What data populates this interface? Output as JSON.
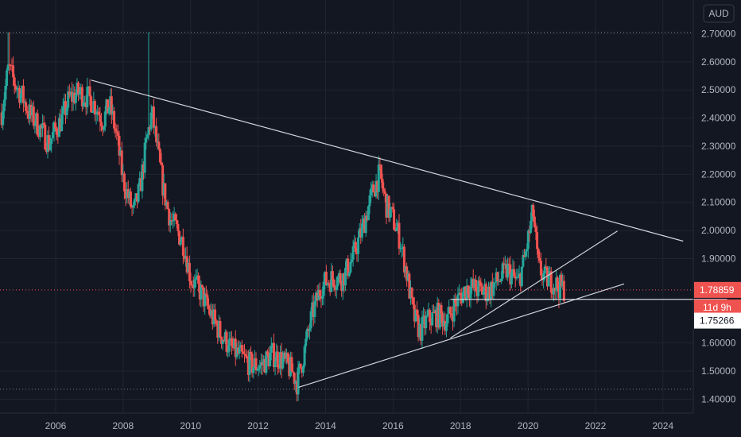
{
  "chart_data": {
    "type": "candlestick",
    "currency": "AUD",
    "colors": {
      "background": "#131722",
      "grid": "#1f2433",
      "up": "#26a69a",
      "down": "#ef5350",
      "trendline": "#d1d4dc",
      "axis_text": "#b2b5be",
      "last_price_tag": "#ef5350",
      "countdown_tag": "#ef5350",
      "cursor_tag": "#ffffff"
    },
    "x_ticks": [
      "2006",
      "2008",
      "2010",
      "2012",
      "2014",
      "2016",
      "2018",
      "2020",
      "2022",
      "2024"
    ],
    "y_ticks": [
      "2.70000",
      "2.60000",
      "2.50000",
      "2.40000",
      "2.30000",
      "2.20000",
      "2.10000",
      "2.00000",
      "1.90000",
      "1.60000",
      "1.50000",
      "1.40000"
    ],
    "xlim": [
      2004.35,
      2024.9
    ],
    "ylim": [
      1.35,
      2.82
    ],
    "last_price": "1.78859",
    "countdown": "11d 9h",
    "cursor_price": "1.75266",
    "last_price_value": 1.78859,
    "cursor_price_value": 1.75266,
    "dotted_high": 2.705,
    "dotted_low": 1.435,
    "price_path": [
      [
        2004.4,
        2.42
      ],
      [
        2004.6,
        2.58
      ],
      [
        2004.8,
        2.52
      ],
      [
        2005.0,
        2.48
      ],
      [
        2005.2,
        2.42
      ],
      [
        2005.5,
        2.37
      ],
      [
        2005.8,
        2.31
      ],
      [
        2006.0,
        2.36
      ],
      [
        2006.2,
        2.4
      ],
      [
        2006.4,
        2.47
      ],
      [
        2006.7,
        2.49
      ],
      [
        2007.0,
        2.47
      ],
      [
        2007.2,
        2.44
      ],
      [
        2007.4,
        2.39
      ],
      [
        2007.6,
        2.45
      ],
      [
        2007.8,
        2.34
      ],
      [
        2008.0,
        2.18
      ],
      [
        2008.3,
        2.06
      ],
      [
        2008.5,
        2.15
      ],
      [
        2008.7,
        2.32
      ],
      [
        2008.85,
        2.42
      ],
      [
        2009.0,
        2.3
      ],
      [
        2009.2,
        2.14
      ],
      [
        2009.4,
        2.04
      ],
      [
        2009.6,
        2.0
      ],
      [
        2009.8,
        1.95
      ],
      [
        2010.0,
        1.83
      ],
      [
        2010.3,
        1.78
      ],
      [
        2010.6,
        1.7
      ],
      [
        2010.9,
        1.63
      ],
      [
        2011.2,
        1.58
      ],
      [
        2011.5,
        1.55
      ],
      [
        2011.8,
        1.52
      ],
      [
        2012.1,
        1.52
      ],
      [
        2012.4,
        1.56
      ],
      [
        2012.7,
        1.54
      ],
      [
        2013.0,
        1.5
      ],
      [
        2013.15,
        1.46
      ],
      [
        2013.3,
        1.53
      ],
      [
        2013.6,
        1.7
      ],
      [
        2013.9,
        1.81
      ],
      [
        2014.2,
        1.83
      ],
      [
        2014.5,
        1.83
      ],
      [
        2014.8,
        1.9
      ],
      [
        2015.1,
        2.01
      ],
      [
        2015.4,
        2.14
      ],
      [
        2015.6,
        2.2
      ],
      [
        2015.8,
        2.09
      ],
      [
        2016.0,
        2.04
      ],
      [
        2016.2,
        1.97
      ],
      [
        2016.4,
        1.85
      ],
      [
        2016.6,
        1.7
      ],
      [
        2016.8,
        1.64
      ],
      [
        2017.0,
        1.68
      ],
      [
        2017.3,
        1.7
      ],
      [
        2017.6,
        1.68
      ],
      [
        2017.9,
        1.75
      ],
      [
        2018.2,
        1.8
      ],
      [
        2018.5,
        1.79
      ],
      [
        2018.8,
        1.78
      ],
      [
        2019.1,
        1.82
      ],
      [
        2019.4,
        1.86
      ],
      [
        2019.7,
        1.81
      ],
      [
        2019.9,
        1.9
      ],
      [
        2020.05,
        2.0
      ],
      [
        2020.15,
        2.07
      ],
      [
        2020.3,
        1.87
      ],
      [
        2020.5,
        1.83
      ],
      [
        2020.7,
        1.82
      ],
      [
        2020.9,
        1.8
      ],
      [
        2021.1,
        1.79
      ]
    ],
    "trendlines": [
      {
        "name": "upper-resistance",
        "from": [
          2007.05,
          2.535
        ],
        "to": [
          2024.6,
          1.962
        ]
      },
      {
        "name": "lower-support",
        "from": [
          2013.2,
          1.442
        ],
        "to": [
          2022.85,
          1.81
        ]
      },
      {
        "name": "inner-support",
        "from": [
          2017.7,
          1.617
        ],
        "to": [
          2022.65,
          1.998
        ]
      },
      {
        "name": "horizontal-level",
        "from": [
          2017.7,
          1.755
        ],
        "to": [
          2025.9,
          1.755
        ]
      }
    ]
  }
}
